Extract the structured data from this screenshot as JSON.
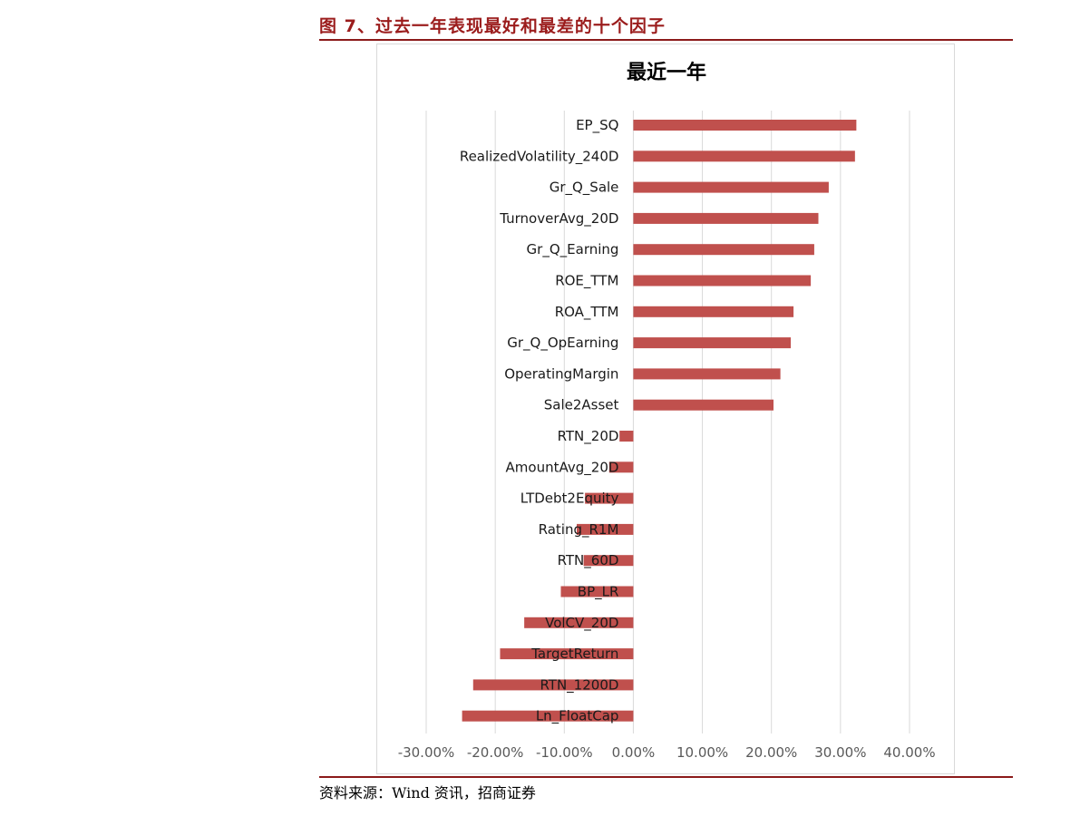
{
  "header": {
    "figure_title": "图 7、过去一年表现最好和最差的十个因子"
  },
  "footer": {
    "source": "资料来源：Wind 资讯，招商证券"
  },
  "colors": {
    "bar": "#c0504d",
    "title_red": "#9b1c1c",
    "rule": "#8b1a1a",
    "grid": "#d9d9d9",
    "tick_text": "#595959"
  },
  "chart_data": {
    "type": "bar",
    "orientation": "horizontal",
    "title": "最近一年",
    "categories": [
      "EP_SQ",
      "RealizedVolatility_240D",
      "Gr_Q_Sale",
      "TurnoverAvg_20D",
      "Gr_Q_Earning",
      "ROE_TTM",
      "ROA_TTM",
      "Gr_Q_OpEarning",
      "OperatingMargin",
      "Sale2Asset",
      "RTN_20D",
      "AmountAvg_20D",
      "LTDebt2Equity",
      "Rating_R1M",
      "RTN_60D",
      "BP_LR",
      "VolCV_20D",
      "TargetReturn",
      "RTN_1200D",
      "Ln_FloatCap"
    ],
    "values": [
      0.323,
      0.321,
      0.283,
      0.268,
      0.262,
      0.257,
      0.232,
      0.228,
      0.213,
      0.203,
      -0.02,
      -0.035,
      -0.07,
      -0.082,
      -0.072,
      -0.105,
      -0.158,
      -0.193,
      -0.232,
      -0.248
    ],
    "xlim": [
      -0.3,
      0.4
    ],
    "xticks": [
      -0.3,
      -0.2,
      -0.1,
      0.0,
      0.1,
      0.2,
      0.3,
      0.4
    ],
    "xtick_labels": [
      "-30.00%",
      "-20.00%",
      "-10.00%",
      "0.00%",
      "10.00%",
      "20.00%",
      "30.00%",
      "40.00%"
    ],
    "grid": "vertical",
    "legend": "none",
    "xlabel": "",
    "ylabel": ""
  }
}
